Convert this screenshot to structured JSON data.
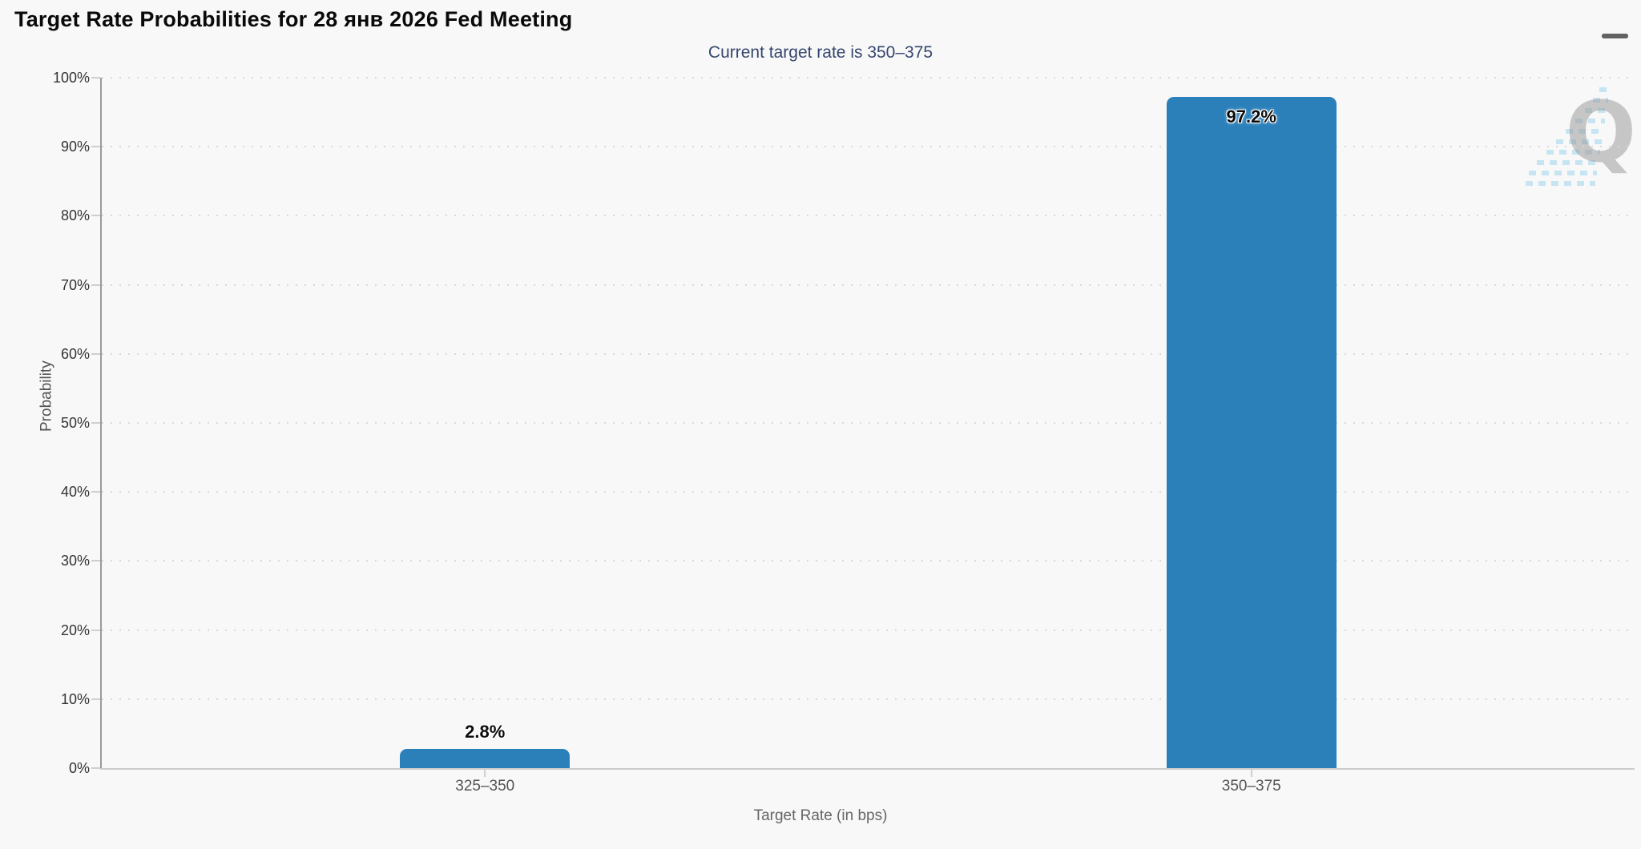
{
  "header": {
    "menu_tooltip": "Chart context menu"
  },
  "chart_data": {
    "type": "bar",
    "title": "Target Rate Probabilities for 28 янв 2026 Fed Meeting",
    "subtitle": "Current target rate is 350–375",
    "categories": [
      "325–350",
      "350–375"
    ],
    "values": [
      2.8,
      97.2
    ],
    "value_labels": [
      "2.8%",
      "97.2%"
    ],
    "xlabel": "Target Rate (in bps)",
    "ylabel": "Probability",
    "ylim": [
      0,
      100
    ],
    "ytick_step": 10,
    "ytick_labels": [
      "0%",
      "10%",
      "20%",
      "30%",
      "40%",
      "50%",
      "60%",
      "70%",
      "80%",
      "90%",
      "100%"
    ],
    "grid": "dotted horizontal gridlines, solid left y-axis and bottom x-axis",
    "legend": "none"
  },
  "colors": {
    "background": "#f8f8f8",
    "bar": "#2b80ba",
    "subtitle_text": "#36466e",
    "title_text": "#0a0a0a",
    "grid": "#d9d9d9",
    "axis_line": "#9a9a9a",
    "tick": "#cfcfcf"
  },
  "watermark": {
    "letter": "Q"
  }
}
